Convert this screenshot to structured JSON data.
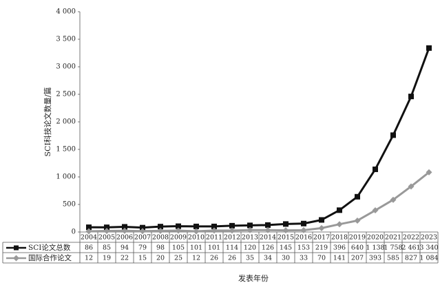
{
  "chart_data": {
    "type": "line",
    "y_label": "SCI科技论文数量/篇",
    "x_label": "发表年份",
    "categories": [
      "2004",
      "2005",
      "2006",
      "2007",
      "2008",
      "2009",
      "2010",
      "2011",
      "2012",
      "2013",
      "2014",
      "2015",
      "2016",
      "2017",
      "2018",
      "2019",
      "2020",
      "2021",
      "2022",
      "2023"
    ],
    "series": [
      {
        "name": "SCI论文总数",
        "color": "#111111",
        "marker": "square",
        "values": [
          86,
          85,
          94,
          79,
          98,
          105,
          101,
          101,
          114,
          120,
          126,
          145,
          153,
          219,
          396,
          640,
          1138,
          1758,
          2461,
          3340
        ],
        "value_labels": [
          "86",
          "85",
          "94",
          "79",
          "98",
          "105",
          "101",
          "101",
          "114",
          "120",
          "126",
          "145",
          "153",
          "219",
          "396",
          "640",
          "1 138",
          "1 758",
          "2 461",
          "3 340"
        ]
      },
      {
        "name": "国际合作论文",
        "color": "#999999",
        "marker": "diamond",
        "values": [
          12,
          19,
          22,
          15,
          20,
          25,
          12,
          26,
          26,
          35,
          34,
          30,
          33,
          70,
          141,
          207,
          393,
          585,
          827,
          1084
        ],
        "value_labels": [
          "12",
          "19",
          "22",
          "15",
          "20",
          "25",
          "12",
          "26",
          "26",
          "35",
          "34",
          "30",
          "33",
          "70",
          "141",
          "207",
          "393",
          "585",
          "827",
          "1 084"
        ]
      }
    ],
    "ylim": [
      0,
      4000
    ],
    "yticks": [
      0,
      500,
      {
        "value": 1000,
        "label": "1 000"
      },
      {
        "value": 1500,
        "label": "1 500"
      },
      {
        "value": 2000,
        "label": "2 000"
      },
      {
        "value": 2500,
        "label": "2 500"
      },
      {
        "value": 3000,
        "label": "3 000"
      },
      {
        "value": 3500,
        "label": "3 500"
      },
      {
        "value": 4000,
        "label": "4 000"
      }
    ],
    "grid": false,
    "legend": "table"
  }
}
